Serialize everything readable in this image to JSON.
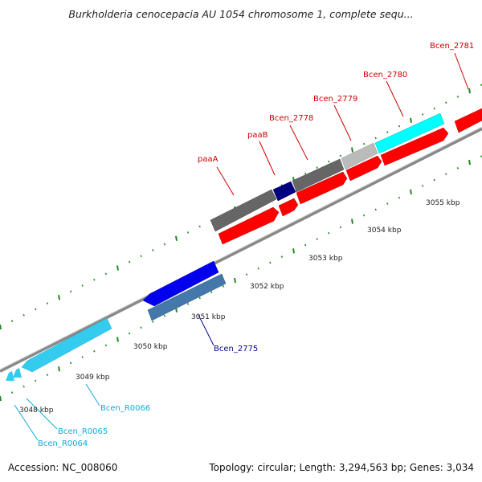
{
  "title": "Burkholderia cenocepacia AU 1054 chromosome 1, complete sequ...",
  "accession": "Accession: NC_008060",
  "summary": "Topology: circular; Length: 3,294,563 bp; Genes: 3,034",
  "colors": {
    "red": "#ff0000",
    "dark_gray": "#666666",
    "navy": "#000080",
    "light_gray": "#bbbbbb",
    "cyan": "#00ffff",
    "blue": "#0000ee",
    "steel_blue": "#4477aa",
    "light_blue": "#33ccee",
    "tick_green": "#228822"
  },
  "kbp_ticks": [
    {
      "label": "3048 kbp"
    },
    {
      "label": "3049 kbp"
    },
    {
      "label": "3050 kbp"
    },
    {
      "label": "3051 kbp"
    },
    {
      "label": "3052 kbp"
    },
    {
      "label": "3053 kbp"
    },
    {
      "label": "3054 kbp"
    },
    {
      "label": "3055 kbp"
    }
  ],
  "gene_labels": [
    {
      "name": "paaA",
      "color": "#cc0000"
    },
    {
      "name": "paaB",
      "color": "#cc0000"
    },
    {
      "name": "Bcen_2778",
      "color": "#cc0000"
    },
    {
      "name": "Bcen_2779",
      "color": "#cc0000"
    },
    {
      "name": "Bcen_2780",
      "color": "#cc0000"
    },
    {
      "name": "Bcen_2781",
      "color": "#cc0000"
    },
    {
      "name": "Bcen_2775",
      "color": "#000099"
    },
    {
      "name": "Bcen_R0066",
      "color": "#11aadd"
    },
    {
      "name": "Bcen_R0065",
      "color": "#11aadd"
    },
    {
      "name": "Bcen_R0064",
      "color": "#11aadd"
    }
  ]
}
